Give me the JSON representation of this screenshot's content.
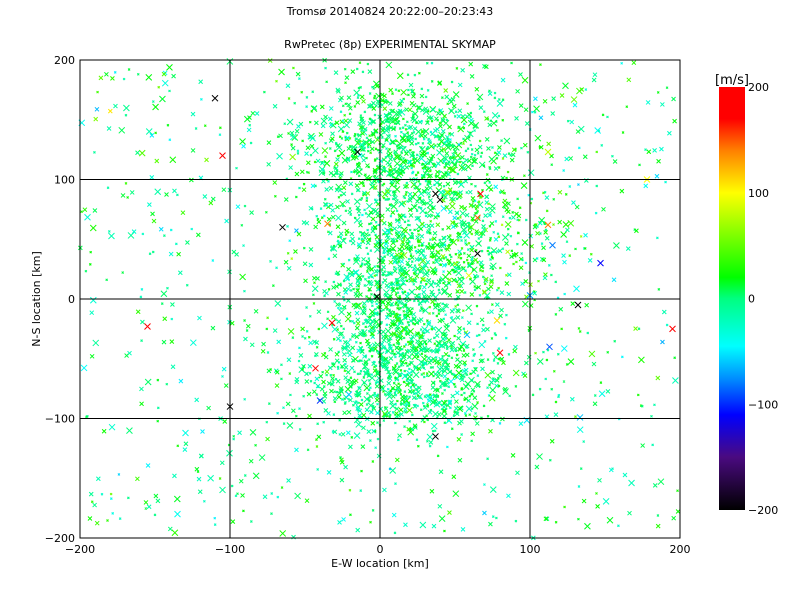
{
  "chart_data": {
    "type": "scatter",
    "title": "Tromsø 20140824 20:22:00–20:23:43",
    "subtitle": "RwPretec (8p) EXPERIMENTAL SKYMAP",
    "xlabel": "E-W location [km]",
    "ylabel": "N-S location [km]",
    "xlim": [
      -200,
      200
    ],
    "ylim": [
      -200,
      200
    ],
    "xticks": [
      -200,
      -100,
      0,
      100,
      200
    ],
    "yticks": [
      -200,
      -100,
      0,
      100,
      200
    ],
    "xtick_labels": [
      "−200",
      "−100",
      "0",
      "100",
      "200"
    ],
    "ytick_labels": [
      "−200",
      "−100",
      "0",
      "100",
      "200"
    ],
    "grid": true,
    "marker": "x",
    "colorbar": {
      "label": "[m/s]",
      "range": [
        -200,
        200
      ],
      "ticks": [
        200,
        100,
        0,
        -100,
        -200
      ],
      "tick_labels": [
        "200",
        "100",
        "0",
        "−100",
        "−200"
      ],
      "colors": [
        {
          "v": -200,
          "c": "#000000"
        },
        {
          "v": -150,
          "c": "#4a0a80"
        },
        {
          "v": -110,
          "c": "#0000ff"
        },
        {
          "v": -75,
          "c": "#0090ff"
        },
        {
          "v": -45,
          "c": "#00ffff"
        },
        {
          "v": 0,
          "c": "#00ff80"
        },
        {
          "v": 20,
          "c": "#00ff00"
        },
        {
          "v": 100,
          "c": "#ffff00"
        },
        {
          "v": 140,
          "c": "#ff8000"
        },
        {
          "v": 170,
          "c": "#ff0000"
        },
        {
          "v": 200,
          "c": "#ff0000"
        }
      ]
    },
    "point_clusters": [
      {
        "cx": 15,
        "cy": 125,
        "sx": 35,
        "sy": 30,
        "n": 900,
        "v_mean": 5,
        "v_sd": 15
      },
      {
        "cx": 10,
        "cy": 10,
        "sx": 25,
        "sy": 35,
        "n": 700,
        "v_mean": 0,
        "v_sd": 15
      },
      {
        "cx": 15,
        "cy": -65,
        "sx": 35,
        "sy": 25,
        "n": 800,
        "v_mean": 0,
        "v_sd": 15
      },
      {
        "cx": 50,
        "cy": 50,
        "sx": 35,
        "sy": 30,
        "n": 500,
        "v_mean": 10,
        "v_sd": 25
      },
      {
        "cx": 0,
        "cy": 0,
        "sx": 200,
        "sy": 200,
        "n": 700,
        "v_mean": 0,
        "v_sd": 25,
        "uniform": true
      }
    ],
    "notable_points": [
      {
        "x": -105,
        "y": 120,
        "v": 190
      },
      {
        "x": 37,
        "y": 88,
        "v": -200
      },
      {
        "x": 40,
        "y": 83,
        "v": -200
      },
      {
        "x": 65,
        "y": 38,
        "v": -200
      },
      {
        "x": -43,
        "y": -58,
        "v": 190
      },
      {
        "x": -32,
        "y": -20,
        "v": 190
      },
      {
        "x": 113,
        "y": -40,
        "v": -90
      },
      {
        "x": 80,
        "y": -45,
        "v": 170
      },
      {
        "x": -40,
        "y": -85,
        "v": -100
      },
      {
        "x": 65,
        "y": 68,
        "v": 150
      },
      {
        "x": 112,
        "y": 62,
        "v": 140
      },
      {
        "x": -35,
        "y": 63,
        "v": 140
      },
      {
        "x": 78,
        "y": -18,
        "v": 110
      },
      {
        "x": 195,
        "y": -25,
        "v": 190
      },
      {
        "x": -155,
        "y": -23,
        "v": 190
      },
      {
        "x": 115,
        "y": 45,
        "v": -80
      },
      {
        "x": 147,
        "y": 30,
        "v": -110
      },
      {
        "x": -110,
        "y": 168,
        "v": -200
      },
      {
        "x": -2,
        "y": 2,
        "v": -200
      },
      {
        "x": -15,
        "y": 123,
        "v": -200
      },
      {
        "x": -65,
        "y": 60,
        "v": -200
      },
      {
        "x": 37,
        "y": -115,
        "v": -200
      },
      {
        "x": 132,
        "y": -5,
        "v": -200
      },
      {
        "x": -100,
        "y": -90,
        "v": -200
      },
      {
        "x": 67,
        "y": 88,
        "v": 180
      },
      {
        "x": 100,
        "y": 3,
        "v": -70
      },
      {
        "x": 58,
        "y": -30,
        "v": -60
      },
      {
        "x": 178,
        "y": 100,
        "v": 100
      },
      {
        "x": 112,
        "y": 123,
        "v": 80
      },
      {
        "x": -135,
        "y": -180,
        "v": -40
      }
    ]
  }
}
